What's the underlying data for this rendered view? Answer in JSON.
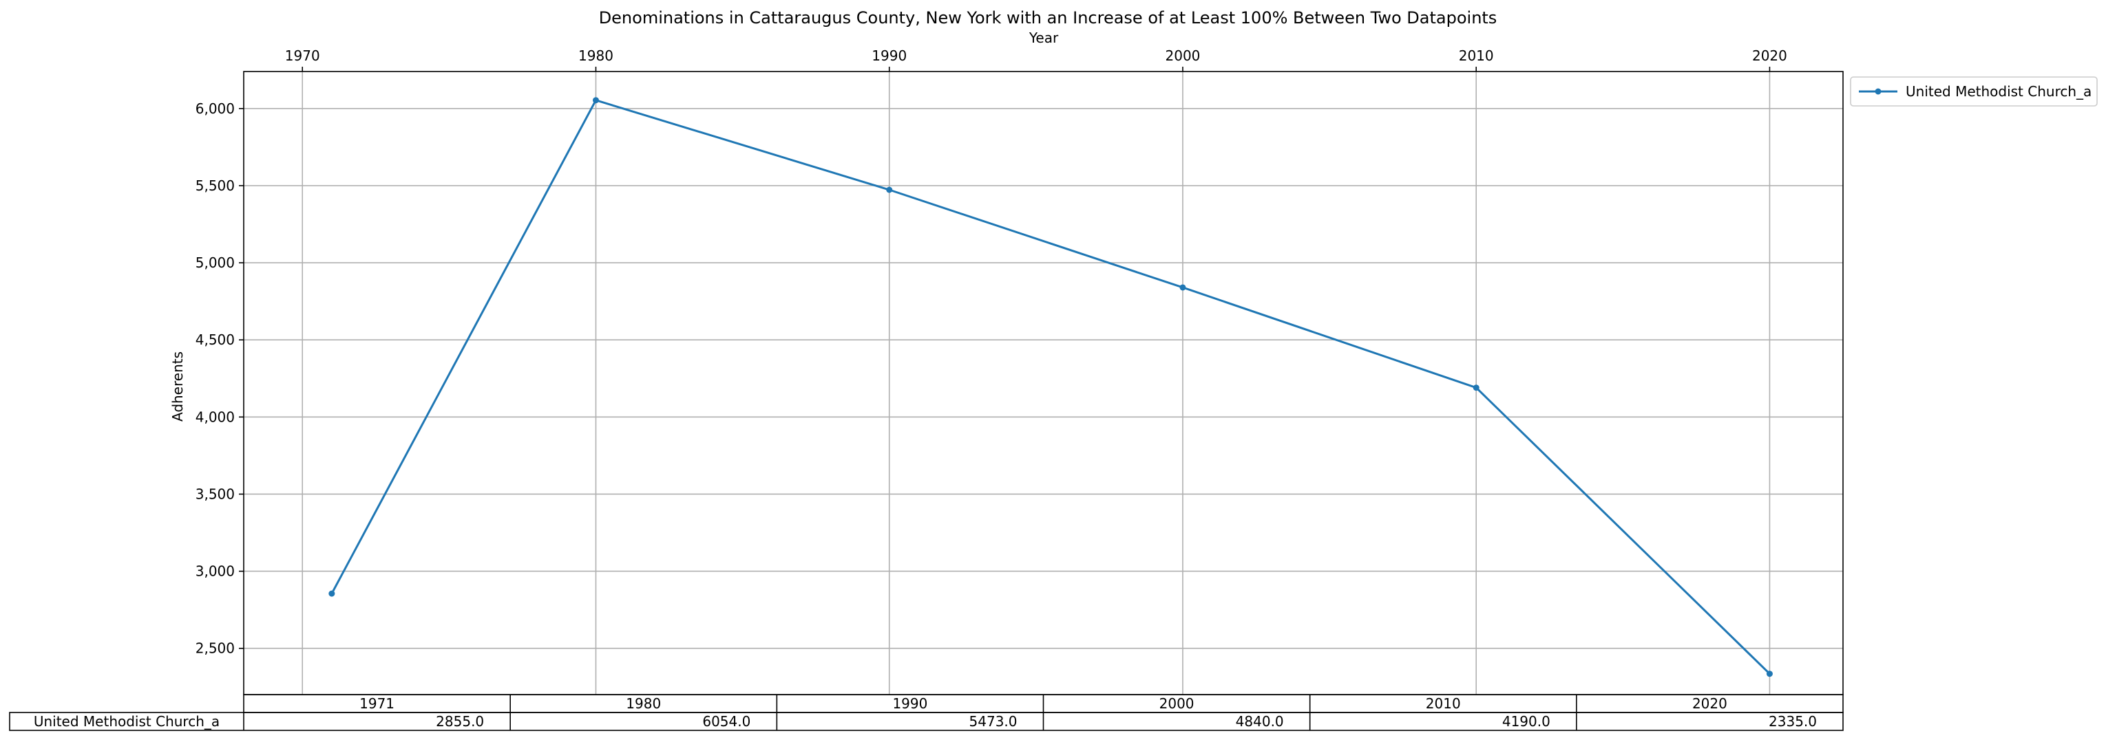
{
  "chart_data": {
    "type": "line",
    "title": "Denominations in Cattaraugus County, New York with an Increase of at Least 100% Between Two Datapoints",
    "xlabel": "Year",
    "ylabel": "Adherents",
    "x": [
      1971,
      1980,
      1990,
      2000,
      2010,
      2020
    ],
    "xticks": [
      1970,
      1980,
      1990,
      2000,
      2010,
      2020
    ],
    "xlim": [
      1968,
      2022.5
    ],
    "ylim": [
      2200,
      6240
    ],
    "yticks": [
      2500,
      3000,
      3500,
      4000,
      4500,
      5000,
      5500,
      6000
    ],
    "yticklabels": [
      "2,500",
      "3,000",
      "3,500",
      "4,000",
      "4,500",
      "5,000",
      "5,500",
      "6,000"
    ],
    "grid": true,
    "legend_position": "outside-top-right",
    "series": [
      {
        "name": "United Methodist Church_a",
        "color": "#1f77b4",
        "values": [
          2855,
          6054,
          5473,
          4840,
          4190,
          2335
        ]
      }
    ],
    "table": {
      "columns": [
        "1971",
        "1980",
        "1990",
        "2000",
        "2010",
        "2020"
      ],
      "rows": [
        {
          "label": "United Methodist Church_a",
          "cells": [
            "2855.0",
            "6054.0",
            "5473.0",
            "4840.0",
            "4190.0",
            "2335.0"
          ]
        }
      ]
    }
  }
}
